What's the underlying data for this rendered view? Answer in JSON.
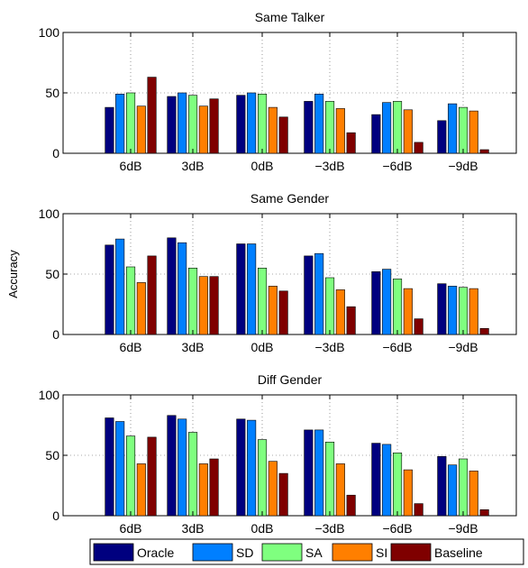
{
  "ylabel": "Accuracy",
  "legend": {
    "placement": "bottom",
    "items": [
      {
        "name": "Oracle",
        "color": "#00007f"
      },
      {
        "name": "SD",
        "color": "#007fff"
      },
      {
        "name": "SA",
        "color": "#7fff7f"
      },
      {
        "name": "SI",
        "color": "#ff7f00"
      },
      {
        "name": "Baseline",
        "color": "#7f0000"
      }
    ]
  },
  "chart_data": [
    {
      "type": "bar",
      "title": "Same Talker",
      "categories": [
        "6dB",
        "3dB",
        "0dB",
        "−3dB",
        "−6dB",
        "−9dB"
      ],
      "ylim": [
        0,
        100
      ],
      "yticks": [
        0,
        50,
        100
      ],
      "grid": true,
      "series": [
        {
          "name": "Oracle",
          "values": [
            38,
            47,
            48,
            43,
            32,
            27
          ]
        },
        {
          "name": "SD",
          "values": [
            49,
            50,
            50,
            49,
            42,
            41
          ]
        },
        {
          "name": "SA",
          "values": [
            50,
            48,
            49,
            43,
            43,
            38
          ]
        },
        {
          "name": "SI",
          "values": [
            39,
            39,
            38,
            37,
            36,
            35
          ]
        },
        {
          "name": "Baseline",
          "values": [
            63,
            45,
            30,
            17,
            9,
            3
          ]
        }
      ]
    },
    {
      "type": "bar",
      "title": "Same Gender",
      "categories": [
        "6dB",
        "3dB",
        "0dB",
        "−3dB",
        "−6dB",
        "−9dB"
      ],
      "ylim": [
        0,
        100
      ],
      "yticks": [
        0,
        50,
        100
      ],
      "grid": true,
      "series": [
        {
          "name": "Oracle",
          "values": [
            74,
            80,
            75,
            65,
            52,
            42
          ]
        },
        {
          "name": "SD",
          "values": [
            79,
            76,
            75,
            67,
            54,
            40
          ]
        },
        {
          "name": "SA",
          "values": [
            56,
            55,
            55,
            47,
            46,
            39
          ]
        },
        {
          "name": "SI",
          "values": [
            43,
            48,
            40,
            37,
            38,
            38
          ]
        },
        {
          "name": "Baseline",
          "values": [
            65,
            48,
            36,
            23,
            13,
            5
          ]
        }
      ]
    },
    {
      "type": "bar",
      "title": "Diff Gender",
      "categories": [
        "6dB",
        "3dB",
        "0dB",
        "−3dB",
        "−6dB",
        "−9dB"
      ],
      "ylim": [
        0,
        100
      ],
      "yticks": [
        0,
        50,
        100
      ],
      "grid": true,
      "series": [
        {
          "name": "Oracle",
          "values": [
            81,
            83,
            80,
            71,
            60,
            49
          ]
        },
        {
          "name": "SD",
          "values": [
            78,
            80,
            79,
            71,
            59,
            42
          ]
        },
        {
          "name": "SA",
          "values": [
            66,
            69,
            63,
            61,
            52,
            47
          ]
        },
        {
          "name": "SI",
          "values": [
            43,
            43,
            45,
            43,
            38,
            37
          ]
        },
        {
          "name": "Baseline",
          "values": [
            65,
            47,
            35,
            17,
            10,
            5
          ]
        }
      ]
    }
  ]
}
